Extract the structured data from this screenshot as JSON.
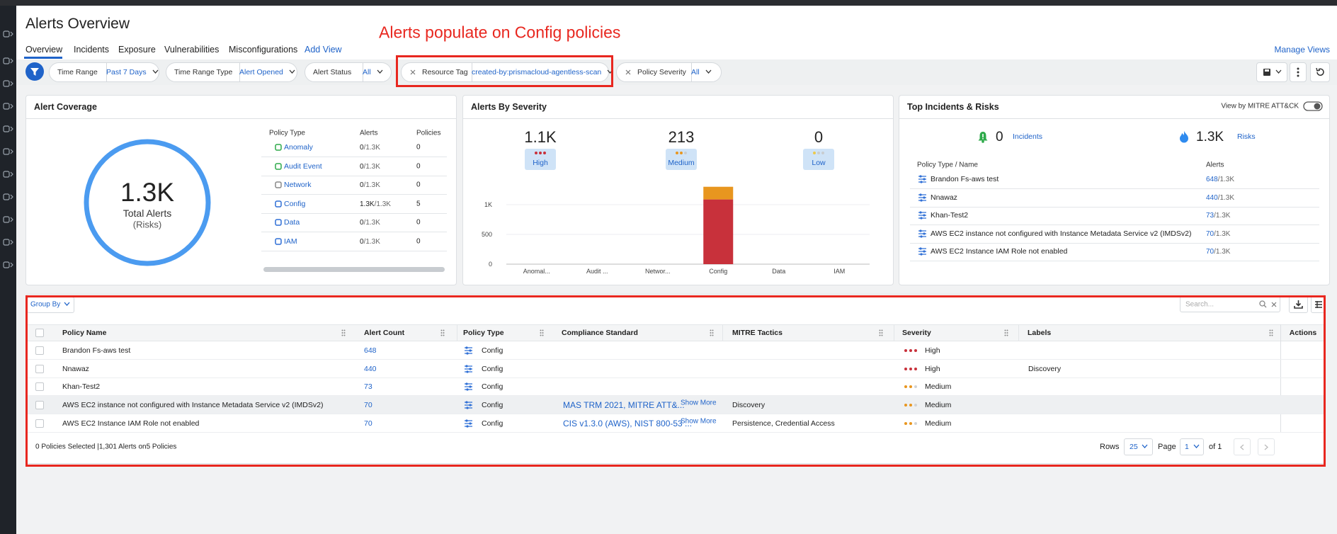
{
  "header": {
    "title": "Alerts Overview",
    "annotation": "Alerts populate on Config policies"
  },
  "tabs": [
    "Overview",
    "Incidents",
    "Exposure",
    "Vulnerabilities",
    "Misconfigurations"
  ],
  "add_view": "Add View",
  "manage_views": "Manage Views",
  "filters": [
    {
      "label": "Time Range",
      "value": "Past 7 Days"
    },
    {
      "label": "Time Range Type",
      "value": "Alert Opened"
    },
    {
      "label": "Alert Status",
      "value": "All"
    },
    {
      "label": "Resource Tag",
      "value": "created-by:prismacloud-agentless-scan"
    },
    {
      "label": "Policy Severity",
      "value": "All"
    }
  ],
  "coverage": {
    "title": "Alert Coverage",
    "total": "1.3K",
    "total_label": "Total Alerts",
    "total_sub": "(Risks)",
    "columns": [
      "Policy Type",
      "Alerts",
      "Policies"
    ],
    "rows": [
      {
        "type": "Anomaly",
        "alerts": "0",
        "of": "/1.3K",
        "policies": "0"
      },
      {
        "type": "Audit Event",
        "alerts": "0",
        "of": "/1.3K",
        "policies": "0"
      },
      {
        "type": "Network",
        "alerts": "0",
        "of": "/1.3K",
        "policies": "0"
      },
      {
        "type": "Config",
        "alerts": "1.3K",
        "of": "/1.3K",
        "policies": "5"
      },
      {
        "type": "Data",
        "alerts": "0",
        "of": "/1.3K",
        "policies": "0"
      },
      {
        "type": "IAM",
        "alerts": "0",
        "of": "/1.3K",
        "policies": "0"
      }
    ]
  },
  "chart_data": {
    "type": "bar",
    "stacked": true,
    "title": "Alerts By Severity",
    "categories": [
      "Anomal...",
      "Audit ...",
      "Networ...",
      "Config",
      "Data",
      "IAM"
    ],
    "series": [
      {
        "name": "High",
        "total": "1.1K",
        "color": "#c8313b",
        "values": [
          0,
          0,
          0,
          1088,
          0,
          0
        ]
      },
      {
        "name": "Medium",
        "total": "213",
        "color": "#e8961f",
        "values": [
          0,
          0,
          0,
          213,
          0,
          0
        ]
      },
      {
        "name": "Low",
        "total": "0",
        "color": "#ecc94b",
        "values": [
          0,
          0,
          0,
          0,
          0,
          0
        ]
      }
    ],
    "ylim": [
      0,
      1500
    ],
    "yticks": [
      0,
      500,
      {
        "value": 1000,
        "label": "1K"
      }
    ],
    "grid": true
  },
  "top_incidents": {
    "title": "Top Incidents & Risks",
    "toggle_label": "View by MITRE ATT&CK",
    "incidents": {
      "value": "0",
      "label": "Incidents"
    },
    "risks": {
      "value": "1.3K",
      "label": "Risks"
    },
    "columns": [
      "Policy Type / Name",
      "Alerts"
    ],
    "rows": [
      {
        "name": "Brandon Fs-aws test",
        "alerts": "648",
        "of": "/1.3K"
      },
      {
        "name": "Nnawaz",
        "alerts": "440",
        "of": "/1.3K"
      },
      {
        "name": "Khan-Test2",
        "alerts": "73",
        "of": "/1.3K"
      },
      {
        "name": "AWS EC2 instance not configured with Instance Metadata Service v2 (IMDSv2)",
        "alerts": "70",
        "of": "/1.3K"
      },
      {
        "name": "AWS EC2 Instance IAM Role not enabled",
        "alerts": "70",
        "of": "/1.3K"
      }
    ]
  },
  "table": {
    "group_by": "Group By",
    "search_placeholder": "Search...",
    "columns": [
      "Policy Name",
      "Alert Count",
      "Policy Type",
      "Compliance Standard",
      "MITRE Tactics",
      "Severity",
      "Labels",
      "Actions"
    ],
    "show_more": "Show More",
    "rows": [
      {
        "name": "Brandon Fs-aws test",
        "count": "648",
        "type": "Config",
        "severity": "High"
      },
      {
        "name": "Nnawaz",
        "count": "440",
        "type": "Config",
        "severity": "High",
        "labels": "Discovery"
      },
      {
        "name": "Khan-Test2",
        "count": "73",
        "type": "Config",
        "severity": "Medium"
      },
      {
        "name": "AWS EC2 instance not configured with Instance Metadata Service v2 (IMDSv2)",
        "count": "70",
        "type": "Config",
        "compliance": "MAS TRM 2021, MITRE ATT&...",
        "mitre": "Discovery",
        "severity": "Medium"
      },
      {
        "name": "AWS EC2 Instance IAM Role not enabled",
        "count": "70",
        "type": "Config",
        "compliance": "CIS v1.3.0 (AWS), NIST 800-53 ...",
        "mitre": "Persistence, Credential Access",
        "severity": "Medium"
      }
    ],
    "footer": "0 Policies Selected |1,301 Alerts on5 Policies",
    "rows_label": "Rows",
    "rows_value": "25",
    "page_label": "Page",
    "page_value": "1",
    "page_of": "of 1"
  }
}
